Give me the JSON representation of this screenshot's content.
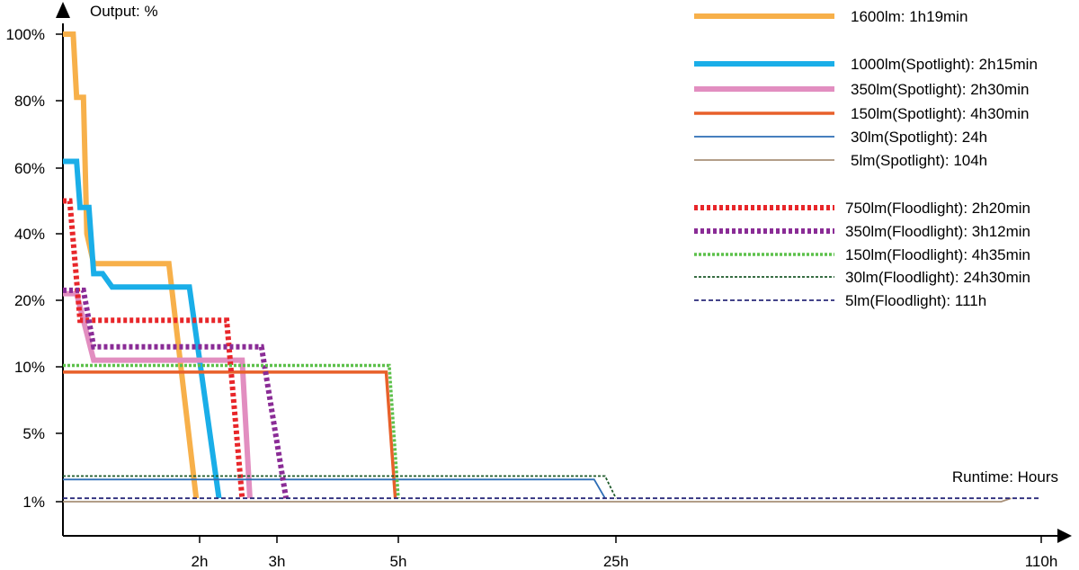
{
  "chart_data": {
    "type": "line",
    "ylabel": "Output: %",
    "xlabel": "Runtime: Hours",
    "y_ticks": [
      "100%",
      "80%",
      "60%",
      "40%",
      "20%",
      "10%",
      "5%",
      "1%"
    ],
    "x_ticks": [
      "2h",
      "3h",
      "5h",
      "25h",
      "110h"
    ],
    "x_tick_values": [
      2,
      3,
      5,
      25,
      110
    ],
    "legend_position": "top-right",
    "grid": false,
    "series": [
      {
        "name": "1600lm: 1h19min",
        "color": "#F7B04A",
        "style": "solid",
        "width": "thick",
        "points": [
          [
            0,
            100
          ],
          [
            0.15,
            100
          ],
          [
            0.2,
            81
          ],
          [
            0.3,
            81
          ],
          [
            0.35,
            40
          ],
          [
            0.45,
            31
          ],
          [
            1.55,
            31
          ],
          [
            1.95,
            1.2
          ]
        ]
      },
      {
        "name": "1000lm(Spotlight): 2h15min",
        "color": "#1AAEE8",
        "style": "solid",
        "width": "thick",
        "points": [
          [
            0,
            62
          ],
          [
            0.2,
            62
          ],
          [
            0.25,
            48
          ],
          [
            0.38,
            48
          ],
          [
            0.45,
            28
          ],
          [
            0.58,
            28
          ],
          [
            0.72,
            24
          ],
          [
            1.85,
            24
          ],
          [
            2.25,
            1.2
          ]
        ]
      },
      {
        "name": "350lm(Spotlight): 2h30min",
        "color": "#E28EC0",
        "style": "solid",
        "width": "thick",
        "points": [
          [
            0,
            22
          ],
          [
            0.2,
            22
          ],
          [
            0.45,
            11
          ],
          [
            2.55,
            11
          ],
          [
            2.65,
            1.2
          ]
        ]
      },
      {
        "name": "150lm(Spotlight): 4h30min",
        "color": "#E8602A",
        "style": "solid",
        "width": "medium",
        "points": [
          [
            0,
            9.6
          ],
          [
            4.8,
            9.6
          ],
          [
            4.95,
            1.2
          ]
        ]
      },
      {
        "name": "30lm(Spotlight): 24h",
        "color": "#2D6DB5",
        "style": "solid",
        "width": "thin",
        "points": [
          [
            0,
            2.3
          ],
          [
            23,
            2.3
          ],
          [
            24,
            1.2
          ]
        ]
      },
      {
        "name": "5lm(Spotlight): 104h",
        "color": "#A89078",
        "style": "solid",
        "width": "thin",
        "points": [
          [
            0,
            1.0
          ],
          [
            102,
            1.0
          ],
          [
            104,
            1.2
          ]
        ]
      },
      {
        "name": "750lm(Floodlight): 2h20min",
        "color": "#E8262A",
        "style": "dotted",
        "width": "thick",
        "points": [
          [
            0,
            50
          ],
          [
            0.1,
            50
          ],
          [
            0.25,
            17
          ],
          [
            2.35,
            17
          ],
          [
            2.55,
            1.2
          ]
        ]
      },
      {
        "name": "350lm(Floodlight): 3h12min",
        "color": "#8A2C96",
        "style": "dotted",
        "width": "thick",
        "points": [
          [
            0,
            23
          ],
          [
            0.3,
            23
          ],
          [
            0.45,
            13
          ],
          [
            2.8,
            13
          ],
          [
            3.15,
            1.2
          ]
        ]
      },
      {
        "name": "150lm(Floodlight): 4h35min",
        "color": "#5CC04A",
        "style": "dotted",
        "width": "medium",
        "points": [
          [
            0,
            10.2
          ],
          [
            4.85,
            10.2
          ],
          [
            5.0,
            1.2
          ]
        ]
      },
      {
        "name": "30lm(Floodlight): 24h30min",
        "color": "#1D5A2A",
        "style": "dotted",
        "width": "thin",
        "points": [
          [
            0,
            2.5
          ],
          [
            24,
            2.5
          ],
          [
            25,
            1.2
          ]
        ]
      },
      {
        "name": "5lm(Floodlight): 111h",
        "color": "#2A2A7A",
        "style": "dashed",
        "width": "thin",
        "points": [
          [
            0,
            1.2
          ],
          [
            108,
            1.2
          ],
          [
            110,
            1.2
          ]
        ]
      }
    ]
  }
}
